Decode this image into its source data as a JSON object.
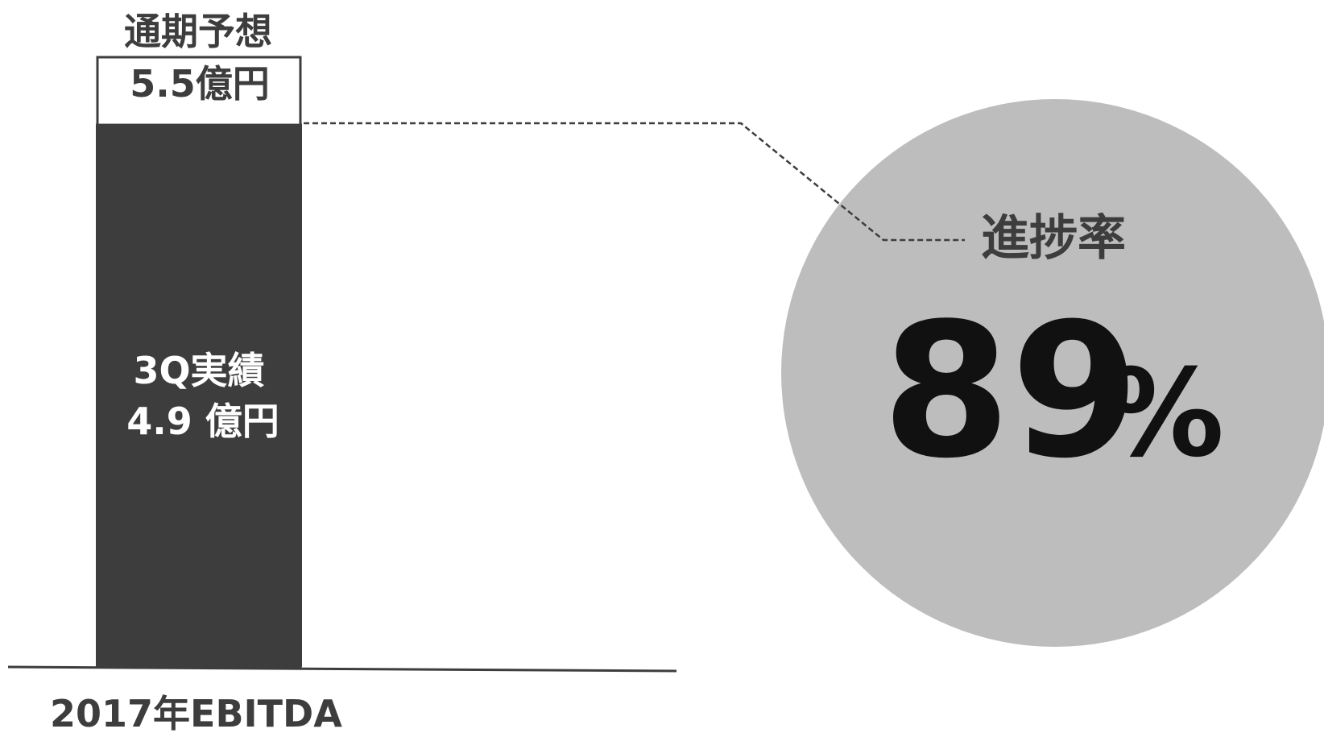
{
  "chart_data": {
    "type": "bar",
    "categories": [
      "2017年EBITDA"
    ],
    "xlabel": "2017年EBITDA",
    "forecast": {
      "label": "通期予想",
      "value": 5.5,
      "value_text": "5.5億円"
    },
    "actual": {
      "label": "3Q実績",
      "value": 4.9,
      "value_text": "4.9 億円"
    },
    "progress": {
      "label": "進捗率",
      "value": 89,
      "number_text": "89",
      "unit_text": "%"
    },
    "colors": {
      "actual_bar": "#3d3d3d",
      "forecast_bar": "#ffffff",
      "circle": "#bdbdbd",
      "text": "#3d3d3d"
    }
  }
}
